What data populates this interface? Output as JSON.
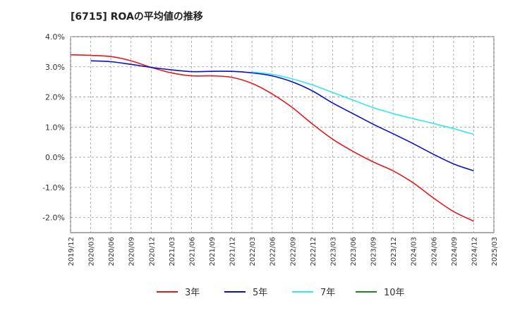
{
  "chart_data": {
    "type": "line",
    "title": "[6715]  ROAの平均値の推移",
    "xlabel": "",
    "ylabel": "",
    "ylim": [
      -2.5,
      4.0
    ],
    "y_ticks": [
      {
        "value": 4.0,
        "label": "4.0%"
      },
      {
        "value": 3.0,
        "label": "3.0%"
      },
      {
        "value": 2.0,
        "label": "2.0%"
      },
      {
        "value": 1.0,
        "label": "1.0%"
      },
      {
        "value": 0.0,
        "label": "0.0%"
      },
      {
        "value": -1.0,
        "label": "-1.0%"
      },
      {
        "value": -2.0,
        "label": "-2.0%"
      }
    ],
    "x_ticks": [
      "2019/12",
      "2020/03",
      "2020/06",
      "2020/09",
      "2020/12",
      "2021/03",
      "2021/06",
      "2021/09",
      "2021/12",
      "2022/03",
      "2022/06",
      "2022/09",
      "2022/12",
      "2023/03",
      "2023/06",
      "2023/09",
      "2023/12",
      "2024/03",
      "2024/06",
      "2024/09",
      "2024/12",
      "2025/03"
    ],
    "grid": true,
    "legend_position": "bottom",
    "series": [
      {
        "name": "3年",
        "color": "#e31a1c",
        "x": [
          "2019/12",
          "2020/03",
          "2020/06",
          "2020/09",
          "2020/12",
          "2021/03",
          "2021/06",
          "2021/09",
          "2021/12",
          "2022/03",
          "2022/06",
          "2022/09",
          "2022/12",
          "2023/03",
          "2023/06",
          "2023/09",
          "2023/12",
          "2024/03",
          "2024/06",
          "2024/09",
          "2024/12"
        ],
        "values": [
          3.4,
          3.38,
          3.34,
          3.2,
          2.98,
          2.8,
          2.7,
          2.7,
          2.65,
          2.45,
          2.1,
          1.65,
          1.1,
          0.6,
          0.2,
          -0.15,
          -0.45,
          -0.85,
          -1.35,
          -1.8,
          -2.12
        ]
      },
      {
        "name": "5年",
        "color": "#0a10c8",
        "x": [
          "2020/03",
          "2020/06",
          "2020/09",
          "2020/12",
          "2021/03",
          "2021/06",
          "2021/09",
          "2021/12",
          "2022/03",
          "2022/06",
          "2022/09",
          "2022/12",
          "2023/03",
          "2023/06",
          "2023/09",
          "2023/12",
          "2024/03",
          "2024/06",
          "2024/09",
          "2024/12"
        ],
        "values": [
          3.2,
          3.17,
          3.08,
          2.98,
          2.9,
          2.84,
          2.85,
          2.85,
          2.8,
          2.7,
          2.5,
          2.2,
          1.8,
          1.45,
          1.1,
          0.78,
          0.45,
          0.1,
          -0.22,
          -0.45
        ]
      },
      {
        "name": "7年",
        "color": "#33e8f0",
        "x": [
          "2022/03",
          "2022/06",
          "2022/09",
          "2022/12",
          "2023/03",
          "2023/06",
          "2023/09",
          "2023/12",
          "2024/03",
          "2024/06",
          "2024/09",
          "2024/12"
        ],
        "values": [
          2.83,
          2.75,
          2.6,
          2.4,
          2.15,
          1.9,
          1.65,
          1.45,
          1.28,
          1.12,
          0.95,
          0.76
        ]
      },
      {
        "name": "10年",
        "color": "#1a8a1a",
        "x": [],
        "values": []
      }
    ]
  }
}
